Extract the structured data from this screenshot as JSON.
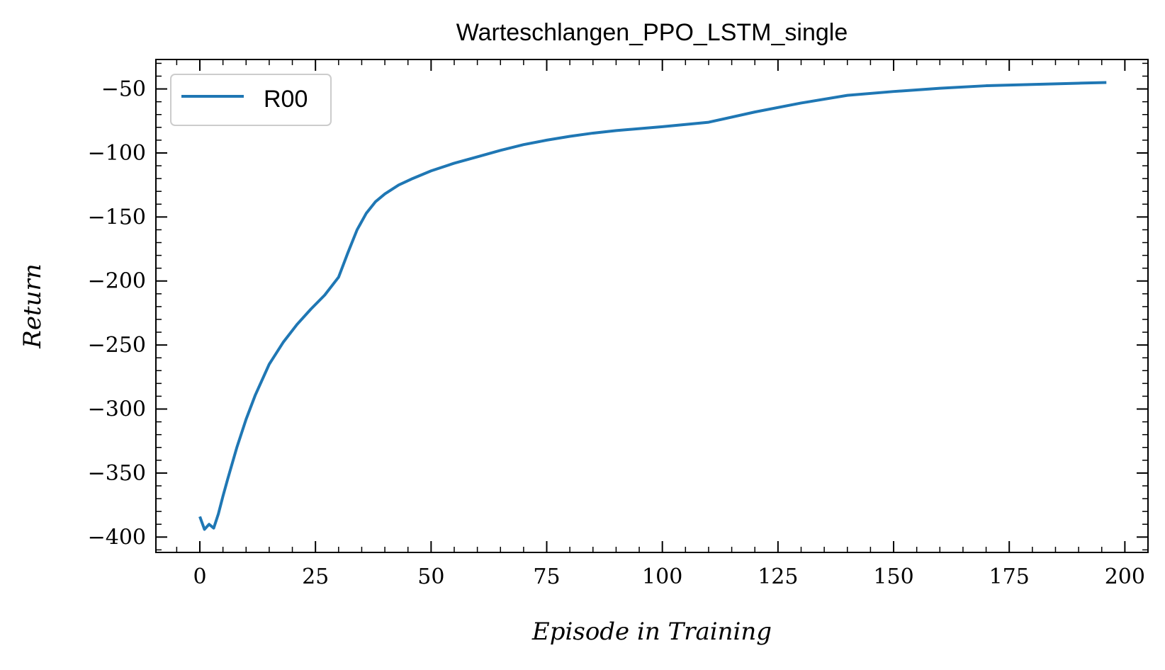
{
  "chart_data": {
    "type": "line",
    "title": "Warteschlangen_PPO_LSTM_single",
    "xlabel": "Episode in Training",
    "ylabel": "Return",
    "xlim": [
      -9.5,
      205
    ],
    "ylim": [
      -412,
      -27
    ],
    "xticks": [
      0,
      25,
      50,
      75,
      100,
      125,
      150,
      175,
      200
    ],
    "xtick_labels": [
      "0",
      "25",
      "50",
      "75",
      "100",
      "125",
      "150",
      "175",
      "200"
    ],
    "yticks": [
      -400,
      -350,
      -300,
      -250,
      -200,
      -150,
      -100,
      -50
    ],
    "ytick_labels": [
      "−400",
      "−350",
      "−300",
      "−250",
      "−200",
      "−150",
      "−100",
      "−50"
    ],
    "x_minor_step": 5,
    "y_minor_step": 10,
    "grid": false,
    "legend": {
      "placement": "upper-left"
    },
    "colors": {
      "series": "#1f77b4",
      "axes": "#000000",
      "legend_border": "#cccccc"
    },
    "series": [
      {
        "name": "R00",
        "x": [
          0,
          1,
          2,
          3,
          4,
          5,
          6,
          8,
          10,
          12,
          15,
          18,
          21,
          24,
          27,
          30,
          32,
          34,
          36,
          38,
          40,
          43,
          46,
          50,
          55,
          60,
          65,
          70,
          75,
          80,
          85,
          90,
          100,
          110,
          120,
          130,
          140,
          150,
          160,
          170,
          180,
          190,
          196
        ],
        "y": [
          -384,
          -394,
          -390,
          -393,
          -382,
          -368,
          -355,
          -330,
          -308,
          -289,
          -265,
          -248,
          -234,
          -222,
          -211,
          -197,
          -178,
          -160,
          -147,
          -138,
          -132,
          -125,
          -120,
          -114,
          -108,
          -103,
          -98,
          -93.5,
          -90,
          -87,
          -84.5,
          -82.5,
          -79.5,
          -76,
          -68,
          -61,
          -55,
          -52,
          -49.5,
          -47.5,
          -46.5,
          -45.5,
          -45
        ]
      }
    ]
  }
}
